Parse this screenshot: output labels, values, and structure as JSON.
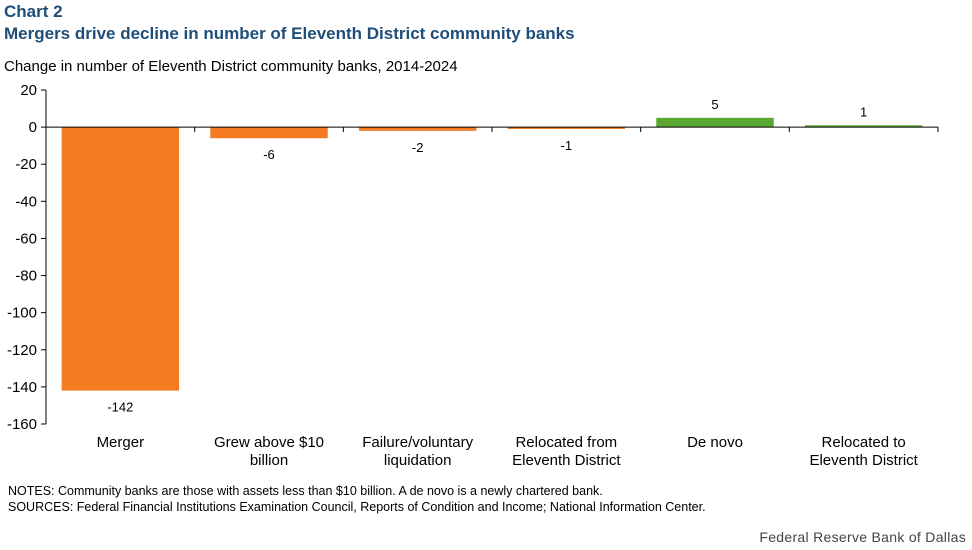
{
  "header": {
    "label": "Chart 2",
    "title": "Mergers drive decline in number of Eleventh District community banks",
    "subtitle": "Change in number of Eleventh District community banks, 2014-2024"
  },
  "footer": {
    "notes": "NOTES: Community banks are those with assets less than $10 billion. A de novo is a newly chartered bank.",
    "sources": "SOURCES: Federal Financial Institutions Examination Council, Reports of Condition and Income; National Information Center.",
    "credit": "Federal Reserve Bank of Dallas"
  },
  "colors": {
    "negative": "#f47b20",
    "positive": "#5aa832",
    "axis": "#000000"
  },
  "chart_data": {
    "type": "bar",
    "categories": [
      [
        "Merger"
      ],
      [
        "Grew above $10",
        "billion"
      ],
      [
        "Failure/voluntary",
        "liquidation"
      ],
      [
        "Relocated from",
        "Eleventh District"
      ],
      [
        "De novo"
      ],
      [
        "Relocated to",
        "Eleventh District"
      ]
    ],
    "values": [
      -142,
      -6,
      -2,
      -1,
      5,
      1
    ],
    "data_labels": [
      "-142",
      "-6",
      "-2",
      "-1",
      "5",
      "1"
    ],
    "ylim": [
      -160,
      20
    ],
    "yticks": [
      20,
      0,
      -20,
      -40,
      -60,
      -80,
      -100,
      -120,
      -140,
      -160
    ],
    "grid": false,
    "legend": "none"
  }
}
